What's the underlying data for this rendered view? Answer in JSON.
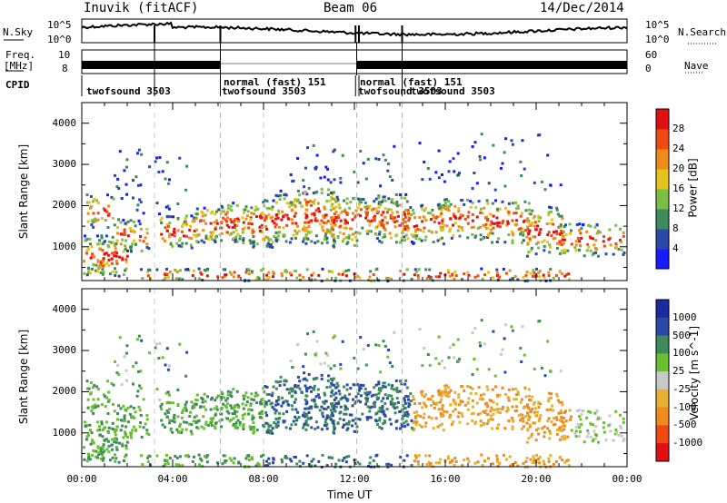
{
  "header": {
    "station": "Inuvik (fitACF)",
    "beam": "Beam 06",
    "date": "14/Dec/2014"
  },
  "strip_labels": {
    "nsky": "N.Sky",
    "nsearch": "N.Search",
    "freq": "Freq.",
    "freq_unit": "[MHz]",
    "nave": "Nave",
    "cpid": "CPID",
    "nsky_ticks": [
      "10^5",
      "10^0"
    ],
    "nsearch_ticks": [
      "10^5",
      "10^0"
    ],
    "freq_ticks": [
      "10",
      "8"
    ],
    "nave_ticks": [
      "60",
      "0"
    ]
  },
  "cpid_segments": [
    {
      "label": "twofsound 3503",
      "start_h": 0
    },
    {
      "label": "normal (fast) 151",
      "start_h": 6
    },
    {
      "label": "twofsound 3503",
      "start_h": 6
    },
    {
      "label": "normal (fast) 151",
      "start_h": 12
    },
    {
      "label": "twofsound 3503",
      "start_h": 12
    },
    {
      "label": "twofsound 3503",
      "start_h": 14
    }
  ],
  "colors": {
    "power": [
      "#1a1aff",
      "#2b4aa8",
      "#3d8a5a",
      "#7abf45",
      "#e6c21c",
      "#f08a1c",
      "#f04a10",
      "#e01010"
    ],
    "velocity": [
      "#e01010",
      "#f04a10",
      "#f08a1c",
      "#e6b030",
      "#c8c8c8",
      "#6abf30",
      "#3d8a5a",
      "#2b4aa8",
      "#1a2aa0"
    ]
  },
  "chart_data": [
    {
      "type": "heatmap",
      "title": "Power",
      "ylabel": "Slant Range [km]",
      "xlabel": "Time UT",
      "x_ticks": [
        "00:00",
        "04:00",
        "08:00",
        "12:00",
        "16:00",
        "20:00",
        "00:00"
      ],
      "y_ticks": [
        1000,
        2000,
        3000,
        4000
      ],
      "ylim": [
        180,
        4500
      ],
      "xlim_hours": [
        0,
        24
      ],
      "colorbar": {
        "label": "Power [dB]",
        "ticks": [
          4,
          8,
          12,
          16,
          20,
          24,
          28
        ]
      }
    },
    {
      "type": "heatmap",
      "title": "Velocity",
      "ylabel": "Slant Range [km]",
      "xlabel": "Time UT",
      "x_ticks": [
        "00:00",
        "04:00",
        "08:00",
        "12:00",
        "16:00",
        "20:00",
        "00:00"
      ],
      "y_ticks": [
        1000,
        2000,
        3000,
        4000
      ],
      "ylim": [
        180,
        4500
      ],
      "xlim_hours": [
        0,
        24
      ],
      "colorbar": {
        "label": "Velocity [m s^-1]",
        "ticks": [
          1000,
          500,
          100,
          25,
          -25,
          -100,
          -500,
          -1000
        ]
      }
    }
  ]
}
